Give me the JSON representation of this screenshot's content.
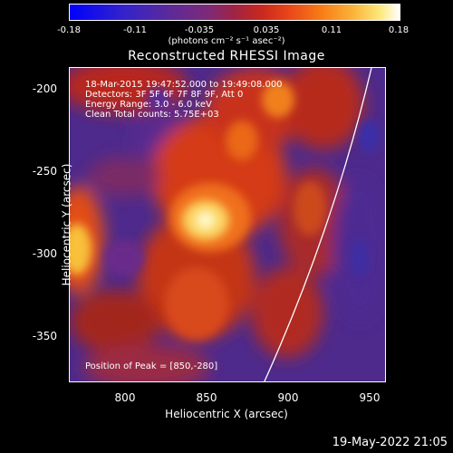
{
  "colorbar": {
    "ticks": [
      "-0.18",
      "-0.11",
      "-0.035",
      "0.035",
      "0.11",
      "0.18"
    ],
    "units": "(photons cm⁻² s⁻¹ asec⁻²)"
  },
  "title": "Reconstructed RHESSI Image",
  "annotations": {
    "time_range": "18-Mar-2015 19:47:52.000 to 19:49:08.000",
    "detectors": "Detectors: 3F 5F 6F 7F 8F 9F, Att 0",
    "energy": "Energy Range: 3.0 - 6.0 keV",
    "method": "Clean    Total counts: 5.75E+03",
    "peak": "Position of Peak = [850,-280]"
  },
  "axes": {
    "xlabel": "Heliocentric X (arcsec)",
    "ylabel": "Heliocentric Y (arcsec)",
    "xticks": [
      "800",
      "850",
      "900",
      "950"
    ],
    "yticks": [
      "-200",
      "-250",
      "-300",
      "-350"
    ]
  },
  "footer": {
    "date": "19-May-2022 21:05"
  }
}
